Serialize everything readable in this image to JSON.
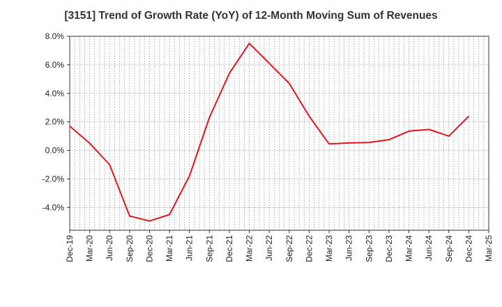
{
  "chart_data": {
    "type": "line",
    "title": "[3151]  Trend of Growth Rate (YoY) of 12-Month Moving Sum of Revenues",
    "xlabel": "",
    "ylabel": "",
    "categories": [
      "Dec-19",
      "Mar-20",
      "Jun-20",
      "Sep-20",
      "Dec-20",
      "Mar-21",
      "Jun-21",
      "Sep-21",
      "Dec-21",
      "Mar-22",
      "Jun-22",
      "Sep-22",
      "Dec-22",
      "Mar-23",
      "Jun-23",
      "Sep-23",
      "Dec-23",
      "Mar-24",
      "Jun-24",
      "Sep-24",
      "Dec-24",
      "Mar-25"
    ],
    "series": [
      {
        "values": [
          1.7,
          0.5,
          -1.0,
          -4.6,
          -4.95,
          -4.5,
          -1.8,
          2.3,
          5.4,
          7.5,
          6.1,
          4.7,
          2.4,
          0.45,
          0.52,
          0.56,
          0.75,
          1.35,
          1.47,
          1.0,
          2.4,
          null
        ],
        "color": "#e8141b"
      }
    ],
    "ylim": [
      -5.6,
      8.0
    ],
    "yticks": [
      8.0,
      6.0,
      4.0,
      2.0,
      0.0,
      -2.0,
      -4.0
    ],
    "ytick_labels": [
      "8.0%",
      "6.0%",
      "4.0%",
      "2.0%",
      "0.0%",
      "-2.0%",
      "-4.0%"
    ],
    "grid": true
  }
}
